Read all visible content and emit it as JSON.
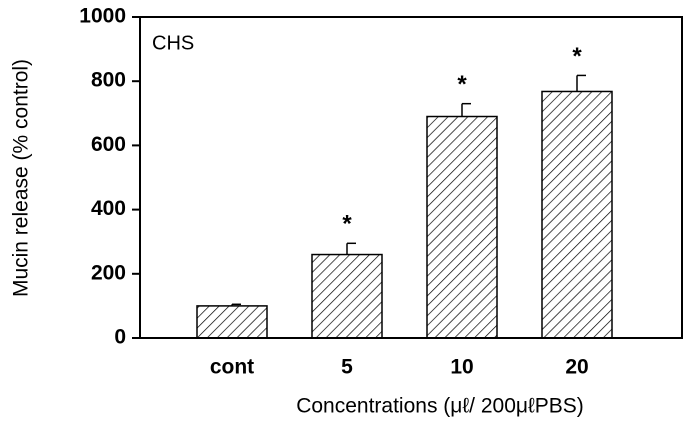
{
  "chart_data": {
    "type": "bar",
    "panel_label": "CHS",
    "xlabel": "Concentrations (μℓ/ 200μℓPBS)",
    "ylabel": "Mucin release (% control)",
    "categories": [
      "cont",
      "5",
      "10",
      "20"
    ],
    "values": [
      100,
      260,
      690,
      768
    ],
    "errors": [
      5,
      35,
      40,
      50
    ],
    "markers": [
      null,
      "*",
      "*",
      "*"
    ],
    "color": "#000000",
    "ylim": [
      0,
      1000
    ],
    "yticks": [
      0,
      200,
      400,
      600,
      800,
      1000
    ],
    "grid": false
  }
}
